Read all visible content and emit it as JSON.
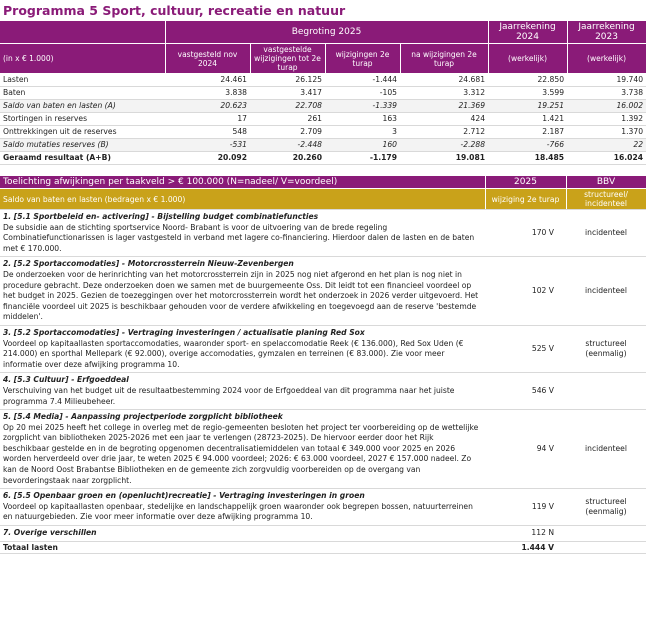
{
  "title": "Programma 5 Sport, cultuur, recreatie en natuur",
  "budget_table": {
    "group_headers": [
      "Begroting 2025",
      "Jaarrekening 2024",
      "Jaarrekening 2023"
    ],
    "column_headers": [
      "(in x € 1.000)",
      "vastgesteld nov 2024",
      "vastgestelde wijzigingen tot 2e turap",
      "wijzigingen 2e turap",
      "na wijzigingen 2e turap",
      "(werkelijk)",
      "(werkelijk)"
    ],
    "rows": [
      [
        "Lasten",
        "24.461",
        "26.125",
        "-1.444",
        "24.681",
        "22.850",
        "19.740"
      ],
      [
        "Baten",
        "3.838",
        "3.417",
        "-105",
        "3.312",
        "3.599",
        "3.738"
      ],
      [
        "Saldo van baten en lasten (A)",
        "20.623",
        "22.708",
        "-1.339",
        "21.369",
        "19.251",
        "16.002"
      ],
      [
        "Stortingen in reserves",
        "17",
        "261",
        "163",
        "424",
        "1.421",
        "1.392"
      ],
      [
        "Onttrekkingen uit de reserves",
        "548",
        "2.709",
        "3",
        "2.712",
        "2.187",
        "1.370"
      ],
      [
        "Saldo mutaties reserves (B)",
        "-531",
        "-2.448",
        "160",
        "-2.288",
        "-766",
        "22"
      ],
      [
        "Geraamd resultaat (A+B)",
        "20.092",
        "20.260",
        "-1.179",
        "19.081",
        "18.485",
        "16.024"
      ]
    ]
  },
  "deviation_table": {
    "header": [
      "Toelichting afwijkingen per taakveld > € 100.000 (N=nadeel/ V=voordeel)",
      "2025",
      "BBV"
    ],
    "subheader": [
      "Saldo van baten en lasten (bedragen x € 1.000)",
      "wijziging 2e turap",
      "structureel/ incidenteel"
    ],
    "items": [
      {
        "title": "1. [5.1 Sportbeleid en- activering] - Bijstelling budget combinatiefuncties",
        "text": "De subsidie aan de stichting sportservice Noord- Brabant is voor de uitvoering van de brede regeling Combinatiefunctionarissen is lager vastgesteld in verband met lagere co-financiering. Hierdoor dalen de lasten en de baten met € 170.000.",
        "amount": "170 V",
        "bbv": "incidenteel"
      },
      {
        "title": "2. [5.2 Sportaccomodaties] - Motorcrossterrein Nieuw-Zevenbergen",
        "text": "De onderzoeken voor de herinrichting van het motorcrossterrein zijn in 2025 nog niet afgerond en het plan is nog niet in procedure gebracht. Deze onderzoeken doen we samen met de buurgemeente Oss. Dit leidt tot een financieel voordeel op het budget in 2025. Gezien de toezeggingen over het motorcrossterrein wordt het onderzoek in 2026 verder uitgevoerd. Het financiële voordeel uit 2025 is beschikbaar gehouden voor de verdere afwikkeling en toegevoegd aan de reserve 'bestemde middelen'.",
        "amount": "102 V",
        "bbv": "incidenteel"
      },
      {
        "title": "3. [5.2 Sportaccomodaties] - Vertraging investeringen / actualisatie planing Red Sox",
        "text": "Voordeel op kapitaallasten sportaccomodaties, waaronder sport- en spelaccomodatie Reek (€ 136.000), Red Sox Uden (€ 214.000) en sporthal Mellepark (€ 92.000), overige accomodaties, gymzalen en terreinen (€ 83.000). Zie voor meer informatie over deze afwijking programma 10.",
        "amount": "525 V",
        "bbv": "structureel (eenmalig)"
      },
      {
        "title": "4. [5.3 Cultuur] - Erfgoeddeal",
        "text": "Verschuiving van het budget uit de resultaatbestemming 2024 voor de Erfgoeddeal van dit programma naar het juiste programma 7.4 Milieubeheer.",
        "amount": "546 V"
      },
      {
        "title": "5. [5.4 Media] - Aanpassing projectperiode zorgplicht bibliotheek",
        "text": "Op 20 mei 2025 heeft het college in overleg met de regio-gemeenten besloten het project ter voorbereiding op de wettelijke zorgplicht van bibliotheken 2025-2026 met een jaar te verlengen (28723-2025). De hiervoor eerder door het Rijk beschikbaar gestelde en in de begroting opgenomen decentralisatiemiddelen van totaal € 349.000 voor 2025 en 2026 worden herverdeeld over drie jaar, te weten 2025 € 94.000 voordeel; 2026: € 63.000 voordeel, 2027 € 157.000 nadeel. Zo kan de Noord Oost Brabantse Bibliotheken en de gemeente zich zorgvuldig voorbereiden op de overgang van bevorderingstaak naar zorgplicht.",
        "amount": "94 V",
        "bbv": "incidenteel"
      },
      {
        "title": "6. [5.5 Openbaar groen en (openlucht)recreatie] - Vertraging investeringen in groen",
        "text": "Voordeel op kapitaallasten openbaar, stedelijke en landschappelijk groen waaronder ook begrepen bossen, natuurterreinen en natuurgebieden. Zie voor meer informatie over deze afwijking programma 10.",
        "amount": "119 V",
        "bbv": "structureel (eenmalig)"
      },
      {
        "title": "7. Overige verschillen",
        "amount": "112 N"
      }
    ],
    "total": {
      "label": "Totaal lasten",
      "amount": "1.444 V"
    }
  }
}
